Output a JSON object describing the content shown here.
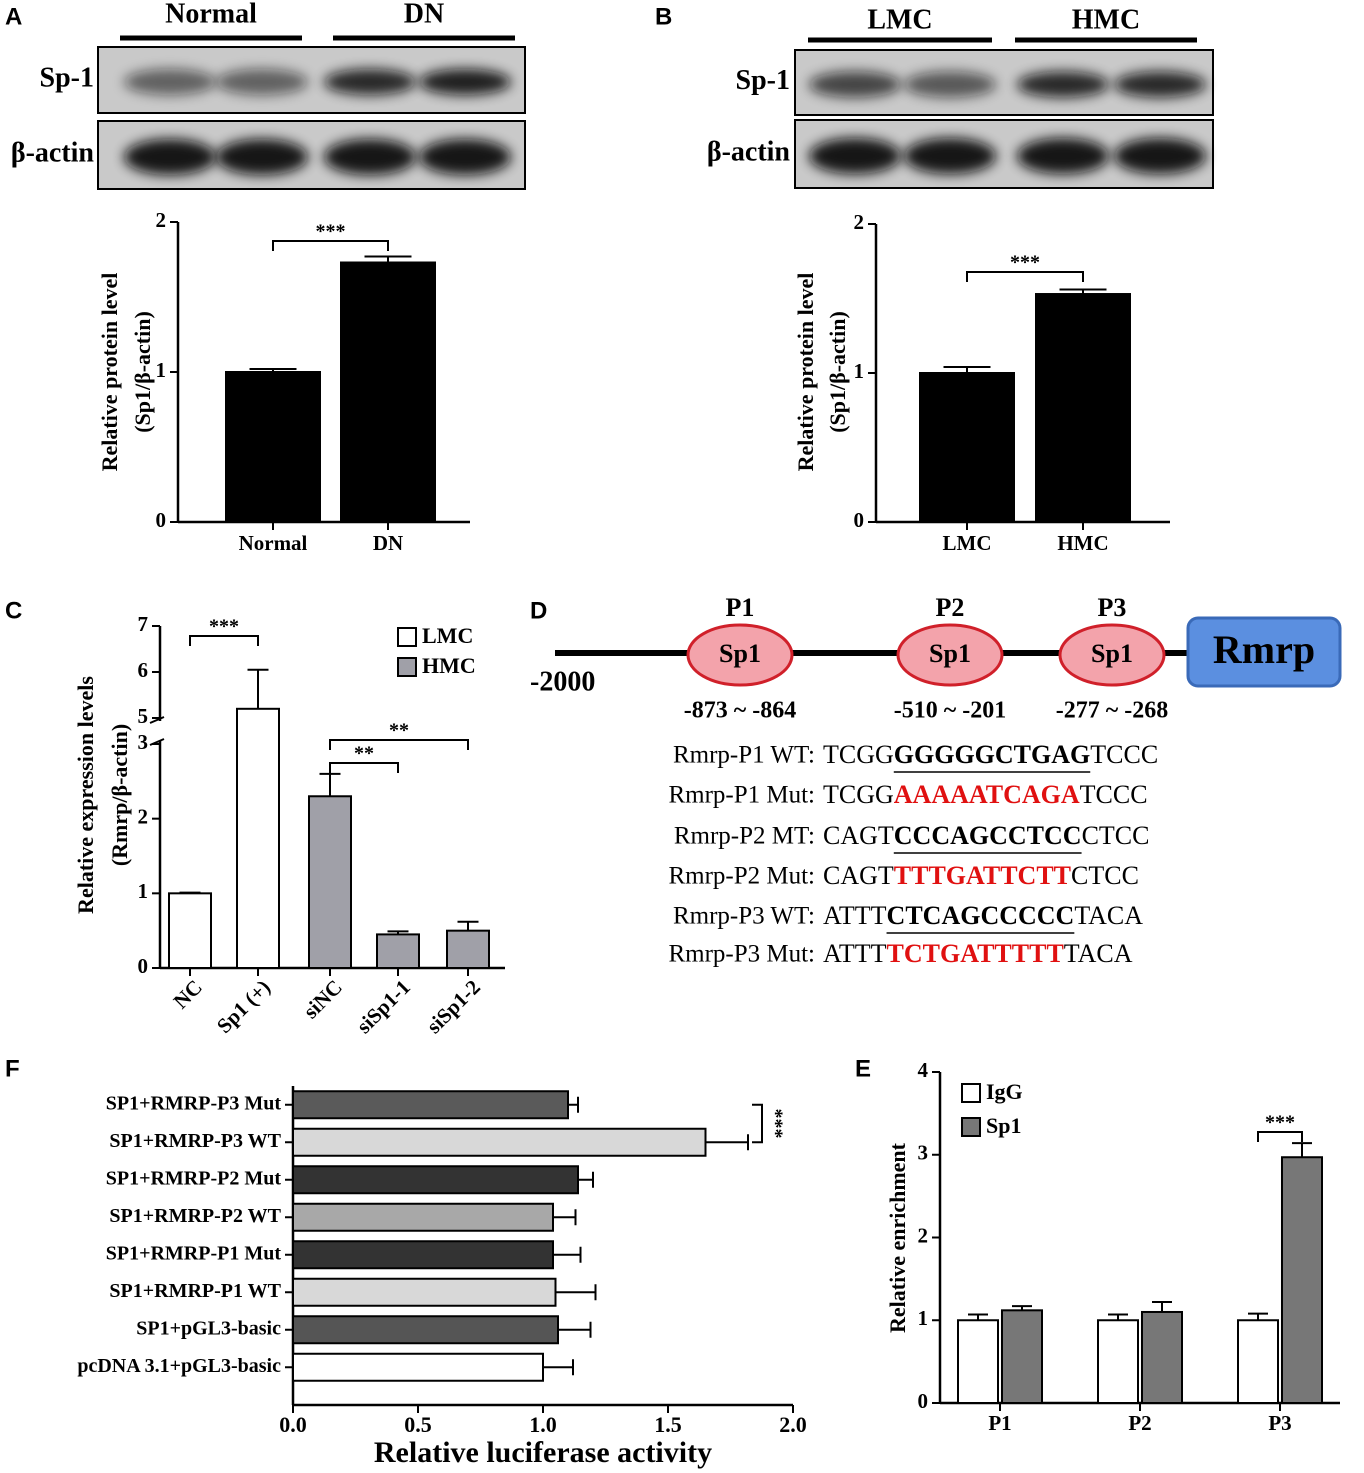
{
  "chart_data": [
    {
      "panel": "A",
      "type": "bar",
      "categories": [
        "Normal",
        "DN"
      ],
      "values": [
        1.0,
        1.73
      ],
      "errors": [
        0.02,
        0.04
      ],
      "color": "#000000",
      "ylim": [
        0,
        2
      ],
      "yticks": [
        0,
        1,
        2
      ],
      "ylabel": [
        "Relative protein level",
        "(Sp1/β-actin)"
      ],
      "significance": [
        {
          "between": [
            0,
            1
          ],
          "label": "***"
        }
      ]
    },
    {
      "panel": "B",
      "type": "bar",
      "categories": [
        "LMC",
        "HMC"
      ],
      "values": [
        1.0,
        1.53
      ],
      "errors": [
        0.04,
        0.03
      ],
      "color": "#000000",
      "ylim": [
        0,
        2
      ],
      "yticks": [
        0,
        1,
        2
      ],
      "ylabel": [
        "Relative protein level",
        "(Sp1/β-actin)"
      ],
      "significance": [
        {
          "between": [
            0,
            1
          ],
          "label": "***"
        }
      ]
    },
    {
      "panel": "C",
      "type": "bar",
      "categories": [
        "NC",
        "Sp1 (+)",
        "siNC",
        "siSp1-1",
        "siSp1-2"
      ],
      "values": [
        1.0,
        5.2,
        2.3,
        0.45,
        0.5
      ],
      "errors": [
        0.01,
        0.85,
        0.3,
        0.04,
        0.12
      ],
      "colors": [
        "#ffffff",
        "#ffffff",
        "#a0a0a8",
        "#a0a0a8",
        "#a0a0a8"
      ],
      "legend": [
        {
          "name": "LMC",
          "color": "#ffffff"
        },
        {
          "name": "HMC",
          "color": "#a0a0a8"
        }
      ],
      "ylim": [
        0,
        7
      ],
      "ybreak": [
        3,
        5
      ],
      "yticks": [
        0,
        1,
        2,
        3,
        5,
        6,
        7
      ],
      "ylabel": [
        "Relative expression levels",
        "(Rmrp/β-actin)"
      ],
      "x_label_rotation": -45,
      "significance": [
        {
          "between": [
            0,
            1
          ],
          "label": "***"
        },
        {
          "between": [
            2,
            3
          ],
          "label": "**"
        },
        {
          "between": [
            2,
            4
          ],
          "label": "**"
        }
      ]
    },
    {
      "panel": "F",
      "type": "barh",
      "categories": [
        "SP1+RMRP-P3 Mut",
        "SP1+RMRP-P3 WT",
        "SP1+RMRP-P2 Mut",
        "SP1+RMRP-P2 WT",
        "SP1+RMRP-P1 Mut",
        "SP1+RMRP-P1 WT",
        "SP1+pGL3-basic",
        "pcDNA 3.1+pGL3-basic"
      ],
      "values": [
        1.1,
        1.65,
        1.14,
        1.04,
        1.04,
        1.05,
        1.06,
        1.0
      ],
      "errors": [
        0.04,
        0.17,
        0.06,
        0.09,
        0.11,
        0.16,
        0.13,
        0.12
      ],
      "colors": [
        "#5a5a5a",
        "#d8d8d8",
        "#333333",
        "#a8a8a8",
        "#333333",
        "#d8d8d8",
        "#555555",
        "#ffffff"
      ],
      "xlim": [
        0,
        2
      ],
      "xticks": [
        {
          "value": 0,
          "label": "0.0"
        },
        {
          "value": 0.5,
          "label": "0.5"
        },
        {
          "value": 1,
          "label": "1.0"
        },
        {
          "value": 1.5,
          "label": "1.5"
        },
        {
          "value": 2,
          "label": "2.0"
        }
      ],
      "xlabel": "Relative luciferase activity",
      "significance": [
        {
          "between": [
            0,
            1
          ],
          "label": "***"
        }
      ]
    },
    {
      "panel": "E",
      "type": "bar",
      "categories": [
        "P1",
        "P2",
        "P3"
      ],
      "series": [
        {
          "name": "IgG",
          "color": "#ffffff",
          "values": [
            1.0,
            1.0,
            1.0
          ],
          "errors": [
            0.07,
            0.07,
            0.08
          ]
        },
        {
          "name": "Sp1",
          "color": "#777777",
          "values": [
            1.12,
            1.1,
            2.97
          ],
          "errors": [
            0.05,
            0.12,
            0.17
          ]
        }
      ],
      "ylim": [
        0,
        4
      ],
      "yticks": [
        0,
        1,
        2,
        3,
        4
      ],
      "ylabel": [
        "Relative enrichment"
      ],
      "significance": [
        {
          "category": 2,
          "label": "***"
        }
      ]
    }
  ],
  "blots": [
    {
      "groups": [
        "Normal",
        "DN"
      ],
      "rows": [
        "Sp-1",
        "β-actin"
      ]
    },
    {
      "groups": [
        "LMC",
        "HMC"
      ],
      "rows": [
        "Sp-1",
        "β-actin"
      ]
    }
  ],
  "diagram": {
    "panel": "D",
    "start": "-2000",
    "gene": "Rmrp",
    "sites": [
      {
        "name": "P1",
        "label": "Sp1",
        "range": "-873 ~ -864"
      },
      {
        "name": "P2",
        "label": "Sp1",
        "range": "-510 ~ -201"
      },
      {
        "name": "P3",
        "label": "Sp1",
        "range": "-277 ~ -268"
      }
    ],
    "sequences": [
      {
        "label": "Rmrp-P1 WT:",
        "prefix": "TCGG",
        "core": "GGGGGCTGAG",
        "suffix": "TCCC",
        "mutant": false
      },
      {
        "label": "Rmrp-P1 Mut:",
        "prefix": "TCGG",
        "core": "AAAAATCAGA",
        "suffix": "TCCC",
        "mutant": true
      },
      {
        "label": "Rmrp-P2 MT:",
        "prefix": "CAGT",
        "core": "CCCAGCCTCC",
        "suffix": "CTCC",
        "mutant": false
      },
      {
        "label": "Rmrp-P2 Mut:",
        "prefix": "CAGT",
        "core": "TTTGATTCTT",
        "suffix": "CTCC",
        "mutant": true
      },
      {
        "label": "Rmrp-P3 WT:",
        "prefix": "ATTT",
        "core": "CTCAGCCCCC",
        "suffix": "TACA",
        "mutant": false
      },
      {
        "label": "Rmrp-P3 Mut:",
        "prefix": "ATTT",
        "core": "TCTGATTTTT",
        "suffix": "TACA",
        "mutant": true
      }
    ]
  }
}
